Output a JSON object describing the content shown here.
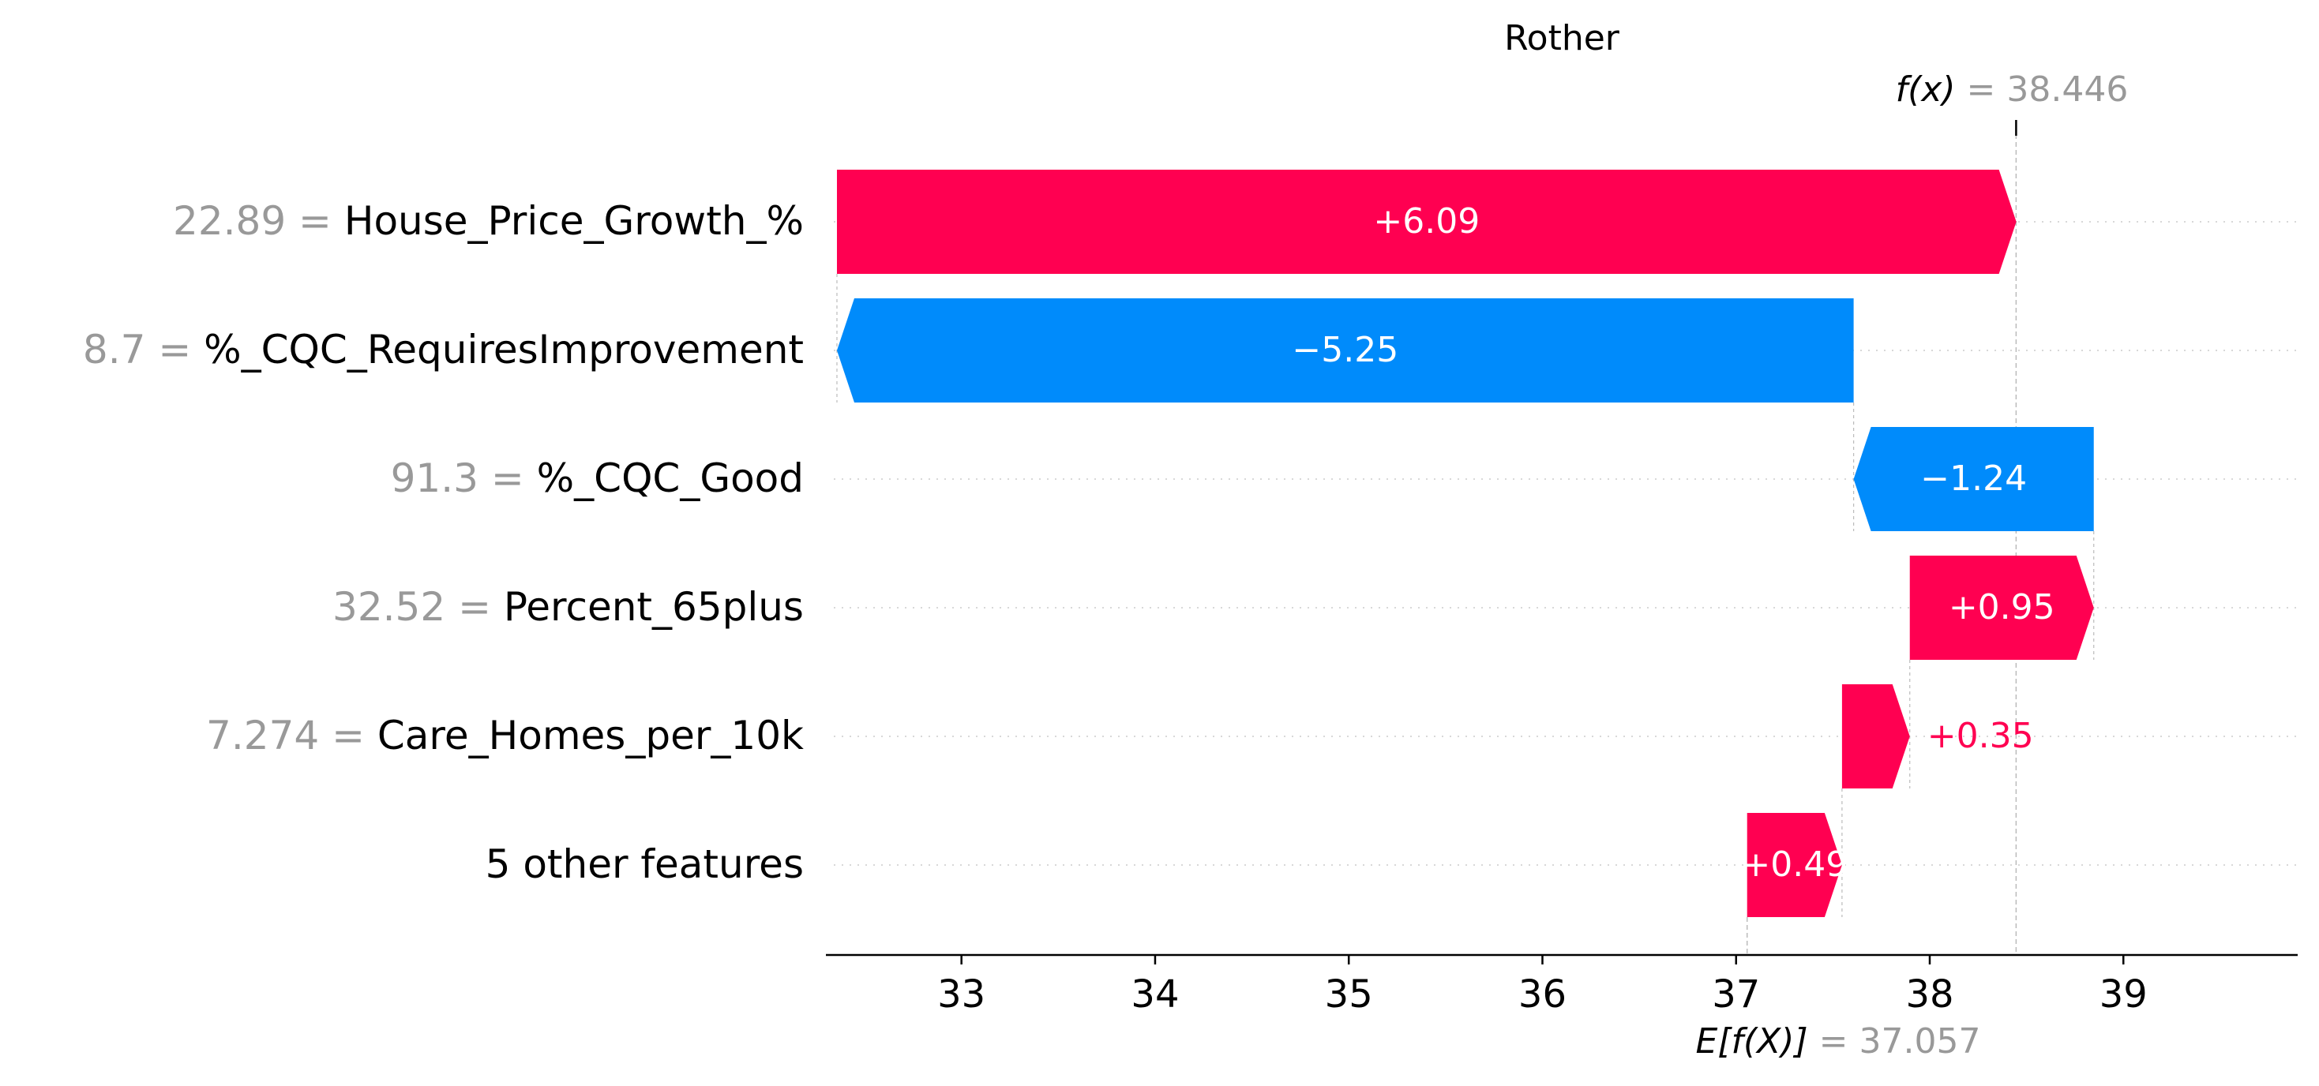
{
  "chart_data": {
    "type": "waterfall",
    "title": "Rother",
    "fx_label": "f(x)",
    "fx_eq": " = ",
    "fx_value": "38.446",
    "ex_label": "E[f(X)]",
    "ex_eq": " = ",
    "ex_value": "37.057",
    "base_value": 37.057,
    "final_value": 38.446,
    "xlim": [
      32.3,
      39.9
    ],
    "x_ticks": [
      "33",
      "34",
      "35",
      "36",
      "37",
      "38",
      "39"
    ],
    "features": [
      {
        "value": "22.89",
        "name": "House_Price_Growth_%",
        "contribution": 6.09,
        "label": "+6.09"
      },
      {
        "value": "8.7",
        "name": "%_CQC_RequiresImprovement",
        "contribution": -5.25,
        "label": "−5.25"
      },
      {
        "value": "91.3",
        "name": "%_CQC_Good",
        "contribution": -1.24,
        "label": "−1.24"
      },
      {
        "value": "32.52",
        "name": "Percent_65plus",
        "contribution": 0.95,
        "label": "+0.95"
      },
      {
        "value": "7.274",
        "name": "Care_Homes_per_10k",
        "contribution": 0.35,
        "label": "+0.35"
      },
      {
        "value": "",
        "name": "5 other features",
        "contribution": 0.49,
        "label": "+0.49"
      }
    ],
    "colors": {
      "positive": "#ff0051",
      "negative": "#008bfb",
      "muted_text": "#999999",
      "text": "#000000",
      "guide": "#bbbbbb",
      "grid": "#cccccc"
    }
  }
}
